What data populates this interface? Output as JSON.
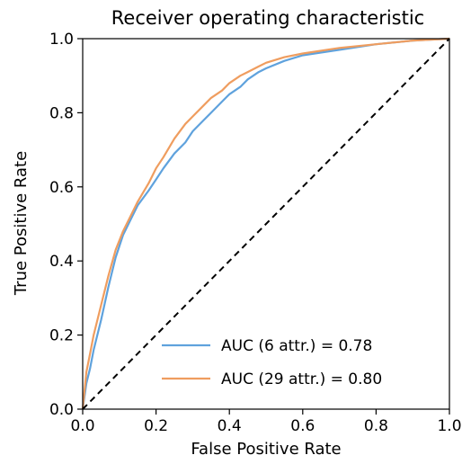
{
  "chart_data": {
    "type": "line",
    "title": "Receiver operating characteristic",
    "xlabel": "False Positive Rate",
    "ylabel": "True Positive Rate",
    "xlim": [
      0.0,
      1.0
    ],
    "ylim": [
      0.0,
      1.0
    ],
    "xticks": [
      "0.0",
      "0.2",
      "0.4",
      "0.6",
      "0.8",
      "1.0"
    ],
    "yticks": [
      "0.0",
      "0.2",
      "0.4",
      "0.6",
      "0.8",
      "1.0"
    ],
    "grid": false,
    "legend_position": "lower-right",
    "series": [
      {
        "name": "AUC (6 attr.) = 0.78",
        "color": "#5fa2dd",
        "x": [
          0.0,
          0.01,
          0.02,
          0.03,
          0.05,
          0.07,
          0.09,
          0.11,
          0.13,
          0.15,
          0.18,
          0.2,
          0.22,
          0.25,
          0.28,
          0.3,
          0.33,
          0.35,
          0.38,
          0.4,
          0.43,
          0.45,
          0.48,
          0.5,
          0.55,
          0.6,
          0.7,
          0.8,
          0.9,
          1.0
        ],
        "y": [
          0.0,
          0.07,
          0.11,
          0.16,
          0.24,
          0.33,
          0.41,
          0.47,
          0.51,
          0.55,
          0.59,
          0.62,
          0.65,
          0.69,
          0.72,
          0.75,
          0.78,
          0.8,
          0.83,
          0.85,
          0.87,
          0.89,
          0.91,
          0.92,
          0.94,
          0.955,
          0.97,
          0.985,
          0.995,
          1.0
        ]
      },
      {
        "name": "AUC (29 attr.) = 0.80",
        "color": "#ef9d5f",
        "x": [
          0.0,
          0.01,
          0.02,
          0.03,
          0.05,
          0.07,
          0.09,
          0.11,
          0.13,
          0.15,
          0.18,
          0.2,
          0.22,
          0.25,
          0.28,
          0.3,
          0.33,
          0.35,
          0.38,
          0.4,
          0.43,
          0.45,
          0.48,
          0.5,
          0.55,
          0.6,
          0.7,
          0.8,
          0.9,
          1.0
        ],
        "y": [
          0.0,
          0.1,
          0.15,
          0.2,
          0.28,
          0.36,
          0.43,
          0.48,
          0.52,
          0.56,
          0.61,
          0.65,
          0.68,
          0.73,
          0.77,
          0.79,
          0.82,
          0.84,
          0.86,
          0.88,
          0.9,
          0.91,
          0.925,
          0.935,
          0.95,
          0.96,
          0.975,
          0.985,
          0.995,
          1.0
        ]
      }
    ],
    "reference_line": {
      "style": "dashed",
      "color": "#000000",
      "x": [
        0.0,
        1.0
      ],
      "y": [
        0.0,
        1.0
      ]
    }
  }
}
